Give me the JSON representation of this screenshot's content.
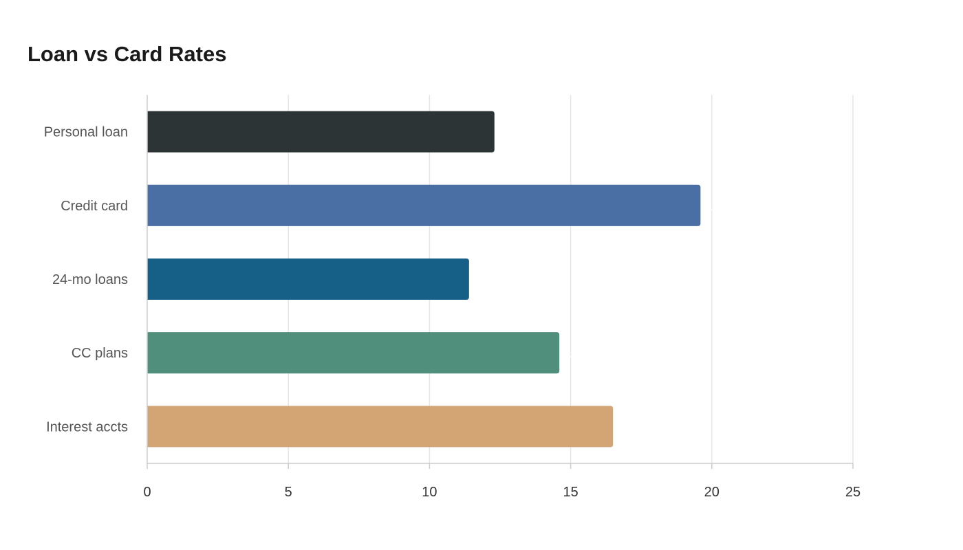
{
  "chart_data": {
    "type": "bar",
    "orientation": "horizontal",
    "title": "Loan vs Card Rates",
    "xlabel": "",
    "ylabel": "",
    "categories": [
      "Personal loan",
      "Credit card",
      "24-mo loans",
      "CC plans",
      "Interest accts"
    ],
    "values": [
      12.3,
      19.6,
      11.4,
      14.6,
      16.5
    ],
    "colors": [
      "#2d3436",
      "#4a6fa5",
      "#166088",
      "#4f8f7b",
      "#d4a574"
    ],
    "xlim": [
      0,
      25
    ],
    "xticks": [
      "0",
      "5",
      "10",
      "15",
      "20",
      "25"
    ],
    "grid": true,
    "legend": "none"
  }
}
